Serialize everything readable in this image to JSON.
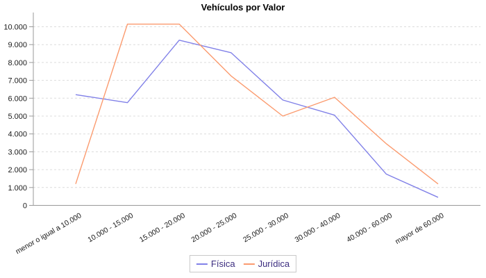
{
  "chart_data": {
    "type": "line",
    "title": "Vehículos por Valor",
    "categories": [
      "menor o igual a 10.000",
      "10.000 - 15.000",
      "15.000 - 20.000",
      "20.000 - 25.000",
      "25.000 - 30.000",
      "30.000 - 40.000",
      "40.000 - 60.000",
      "mayor de 60.000"
    ],
    "series": [
      {
        "name": "Física",
        "color": "#8181e8",
        "values": [
          6200,
          5750,
          9250,
          8550,
          5900,
          5050,
          1750,
          450
        ]
      },
      {
        "name": "Jurídica",
        "color": "#fb9b6f",
        "values": [
          1200,
          10150,
          10150,
          7250,
          5000,
          6050,
          3450,
          1200
        ]
      }
    ],
    "yticks": [
      {
        "value": 0,
        "label": "0"
      },
      {
        "value": 1000,
        "label": "1.000"
      },
      {
        "value": 2000,
        "label": "2.000"
      },
      {
        "value": 3000,
        "label": "3.000"
      },
      {
        "value": 4000,
        "label": "4.000"
      },
      {
        "value": 5000,
        "label": "5.000"
      },
      {
        "value": 6000,
        "label": "6.000"
      },
      {
        "value": 7000,
        "label": "7.000"
      },
      {
        "value": 8000,
        "label": "8.000"
      },
      {
        "value": 9000,
        "label": "9.000"
      },
      {
        "value": 10000,
        "label": "10.000"
      }
    ],
    "ylim": [
      0,
      10800
    ],
    "grid": "horizontal-dashed",
    "legend_position": "bottom-center",
    "xlabel": "",
    "ylabel": ""
  },
  "colors": {
    "background": "#ffffff",
    "grid": "#dcdcdc",
    "axis": "#999999",
    "tick_text": "#1a1a1a",
    "title_text": "#000000",
    "legend_text": "#3b2c7f",
    "legend_border": "#c9c9c9"
  }
}
